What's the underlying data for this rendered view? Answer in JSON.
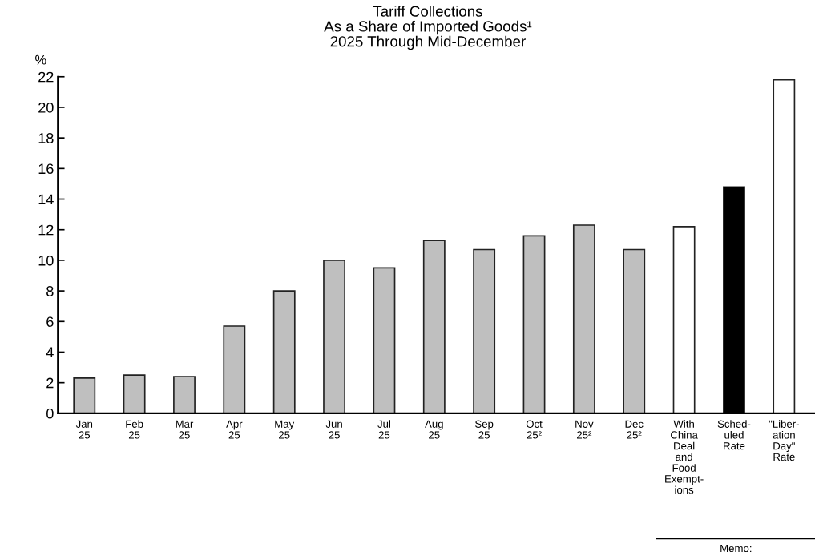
{
  "chart_data": {
    "type": "bar",
    "title": "Tariff Collections\nAs a Share of Imported Goods¹\n2025 Through Mid-December",
    "ylabel": "%",
    "categories": [
      "Jan\n25",
      "Feb\n25",
      "Mar\n25",
      "Apr\n25",
      "May\n25",
      "Jun\n25",
      "Jul\n25",
      "Aug\n25",
      "Sep\n25",
      "Oct\n25²",
      "Nov\n25²",
      "Dec\n25²",
      "With\nChina\nDeal\nand\nFood\nExempt-\nions",
      "Sched-\nuled\nRate",
      "\"Liber-\nation\nDay\"\nRate"
    ],
    "values": [
      2.3,
      2.5,
      2.4,
      5.7,
      8.0,
      10.0,
      9.5,
      11.3,
      10.7,
      11.6,
      12.3,
      10.7,
      12.2,
      14.8,
      21.8
    ],
    "colors": [
      "#bfbfbf",
      "#bfbfbf",
      "#bfbfbf",
      "#bfbfbf",
      "#bfbfbf",
      "#bfbfbf",
      "#bfbfbf",
      "#bfbfbf",
      "#bfbfbf",
      "#bfbfbf",
      "#bfbfbf",
      "#bfbfbf",
      "#ffffff",
      "#000000",
      "#ffffff"
    ],
    "ylim": [
      0,
      22
    ],
    "yticks": [
      0,
      2,
      4,
      6,
      8,
      10,
      12,
      14,
      16,
      18,
      20,
      22
    ],
    "grid": false,
    "legend": false,
    "annotations": [
      "Memo:"
    ]
  }
}
